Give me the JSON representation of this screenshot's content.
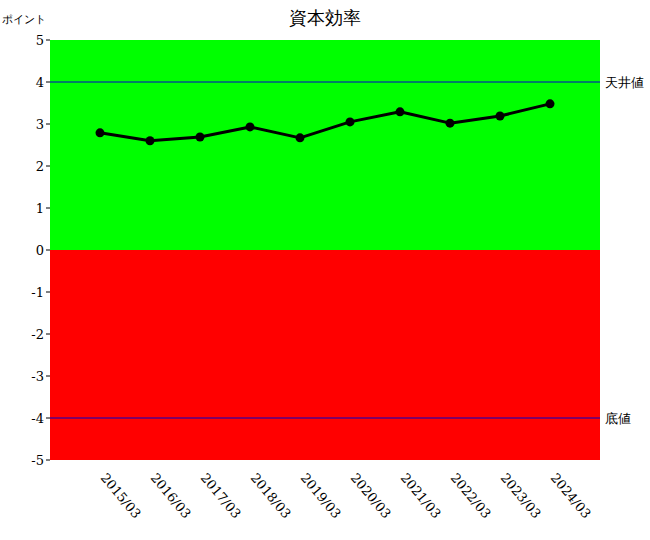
{
  "chart_data": {
    "type": "line",
    "title": "資本効率",
    "y_label": "ポイント",
    "categories": [
      "2015/03",
      "2016/03",
      "2017/03",
      "2018/03",
      "2019/03",
      "2020/03",
      "2021/03",
      "2022/03",
      "2023/03",
      "2024/03"
    ],
    "values": [
      2.79,
      2.6,
      2.69,
      2.93,
      2.67,
      3.05,
      3.29,
      3.02,
      3.19,
      3.48
    ],
    "color": "#000000",
    "marker": "circle",
    "ylim": [
      -5,
      5
    ],
    "yticks": [
      -5,
      -4,
      -3,
      -2,
      -1,
      0,
      1,
      2,
      3,
      4,
      5
    ],
    "bands": [
      {
        "from": 0,
        "to": 5,
        "color": "#00ff00"
      },
      {
        "from": -5,
        "to": 0,
        "color": "#ff0000"
      }
    ],
    "annotations": [
      {
        "value": 4,
        "label": "天井値"
      },
      {
        "value": -4,
        "label": "底値"
      }
    ],
    "grid": false
  }
}
